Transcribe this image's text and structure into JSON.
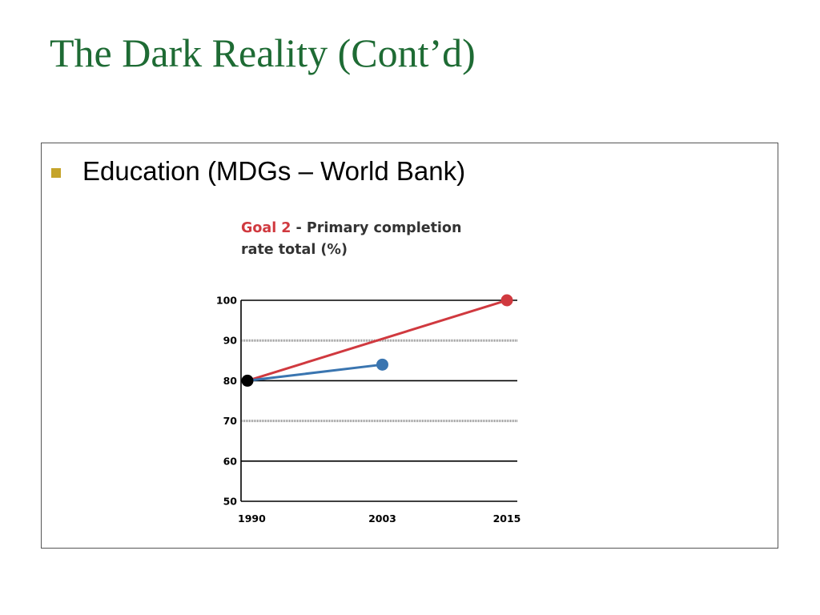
{
  "slide": {
    "title": "The Dark Reality (Cont’d)",
    "bullet": "Education (MDGs – World Bank)"
  },
  "chart_data": {
    "type": "line",
    "title_prefix": "Goal 2",
    "title_rest_line1": " - Primary completion",
    "title_line2": "rate total (%)",
    "x_ticks": [
      "1990",
      "2003",
      "2015"
    ],
    "y_ticks": [
      "100",
      "90",
      "80",
      "70",
      "60",
      "50"
    ],
    "xlim": [
      1990,
      2015
    ],
    "ylim": [
      50,
      100
    ],
    "series": [
      {
        "color": "#d0393f",
        "points": [
          [
            1990,
            80
          ],
          [
            2015,
            100
          ]
        ]
      },
      {
        "color": "#3a75b0",
        "points": [
          [
            1990,
            80
          ],
          [
            2003,
            84
          ]
        ]
      }
    ],
    "start_marker": {
      "x": 1990,
      "y": 80,
      "color": "#000000"
    },
    "colors": {
      "title_accent": "#d0393f",
      "title_main": "#333333",
      "solid_grid": "#000000",
      "dotted_grid": "#888888"
    }
  }
}
